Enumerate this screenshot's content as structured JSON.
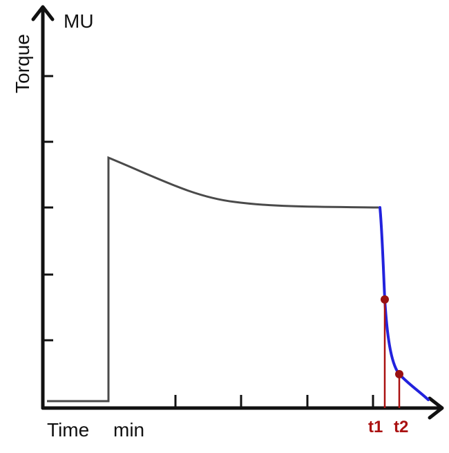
{
  "axes": {
    "y_label": "Torque",
    "y_unit": "MU",
    "x_label": "Time",
    "x_unit": "min"
  },
  "markers": [
    {
      "label": "t1"
    },
    {
      "label": "t2"
    }
  ]
}
